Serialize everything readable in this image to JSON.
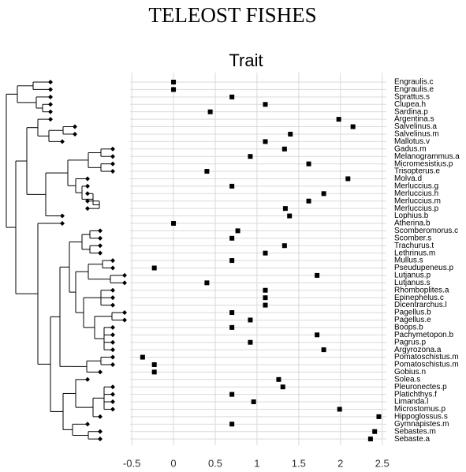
{
  "chart_data": {
    "type": "dot",
    "title": "TELEOST FISHES",
    "panel_title": "Trait",
    "categories": [
      "Engraulis.c",
      "Engraulis.e",
      "Sprattus.s",
      "Clupea.h",
      "Sardina.p",
      "Argentina.s",
      "Salvelinus.a",
      "Salvelinus.m",
      "Mallotus.v",
      "Gadus.m",
      "Melanogrammus.a",
      "Micromesistius.p",
      "Trisopterus.e",
      "Molva.d",
      "Merluccius.g",
      "Merluccius.h",
      "Merluccius.m",
      "Merluccius.p",
      "Lophius.b",
      "Atherina.b",
      "Scomberomorus.c",
      "Scomber.s",
      "Trachurus.t",
      "Lethrinus.m",
      "Mullus.s",
      "Pseudupeneus.p",
      "Lutjanus.p",
      "Lutjanus.s",
      "Rhomboplites.a",
      "Epinephelus.c",
      "Dicentrarchus.l",
      "Pagellus.b",
      "Pagellus.e",
      "Boops.b",
      "Pachymetopon.b",
      "Pagrus.p",
      "Argyrozona.a",
      "Pomatoschistus.m",
      "Pomatoschistus.m",
      "Gobius.n",
      "Solea.s",
      "Pleuronectes.p",
      "Platichthys.f",
      "Limanda.l",
      "Microstomus.p",
      "Hippoglossus.s",
      "Gymnapistes.m",
      "Sebastes.m",
      "Sebaste.a"
    ],
    "values": [
      0,
      0,
      0.7,
      1.1,
      0.44,
      1.98,
      2.15,
      1.4,
      1.1,
      1.33,
      0.92,
      1.62,
      0.4,
      2.09,
      0.7,
      1.8,
      1.62,
      1.34,
      1.39,
      0,
      0.77,
      0.7,
      1.33,
      1.1,
      0.7,
      -0.23,
      1.72,
      0.4,
      1.1,
      1.1,
      1.1,
      0.7,
      0.92,
      0.7,
      1.72,
      0.92,
      1.8,
      -0.37,
      -0.23,
      -0.23,
      1.26,
      1.31,
      0.7,
      0.96,
      1.99,
      2.46,
      0.7,
      2.41,
      2.36
    ],
    "color": "#000000",
    "xlim": [
      -0.52,
      2.55
    ],
    "xticks": [
      -0.5,
      0,
      0.5,
      1,
      1.5,
      2,
      2.5
    ],
    "grid": true
  }
}
